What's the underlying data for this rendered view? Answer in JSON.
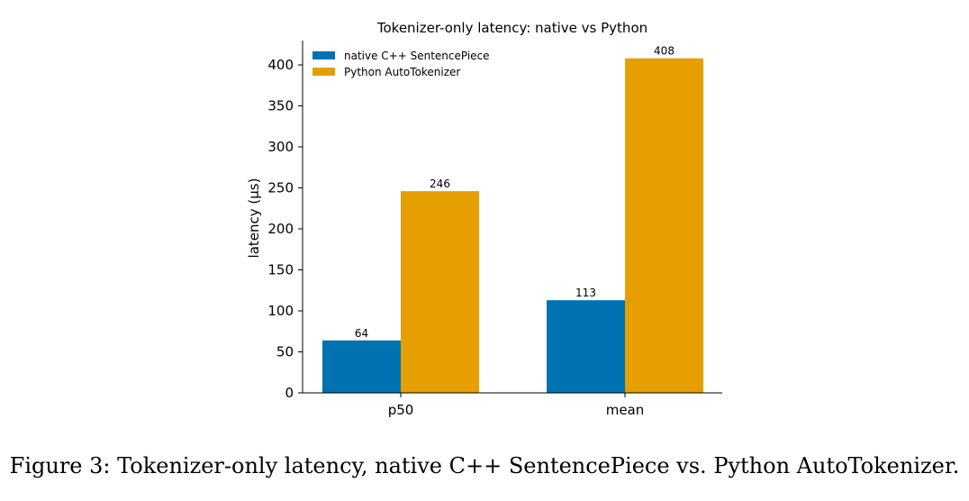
{
  "chart_data": {
    "type": "bar",
    "title": "Tokenizer-only latency: native vs Python",
    "ylabel": "latency (µs)",
    "xlabel": "",
    "categories": [
      "p50",
      "mean"
    ],
    "series": [
      {
        "name": "native C++ SentencePiece",
        "values": [
          64,
          113
        ],
        "color": "#0072b2"
      },
      {
        "name": "Python AutoTokenizer",
        "values": [
          246,
          408
        ],
        "color": "#e69f00"
      }
    ],
    "ylim": [
      0,
      430
    ],
    "yticks": [
      0,
      50,
      100,
      150,
      200,
      250,
      300,
      350,
      400
    ],
    "data_labels": [
      [
        "64",
        "113"
      ],
      [
        "246",
        "408"
      ]
    ],
    "legend_position": "upper-left",
    "grid": false
  },
  "caption": "Figure 3: Tokenizer-only latency, native C++ SentencePiece vs. Python AutoTokenizer."
}
